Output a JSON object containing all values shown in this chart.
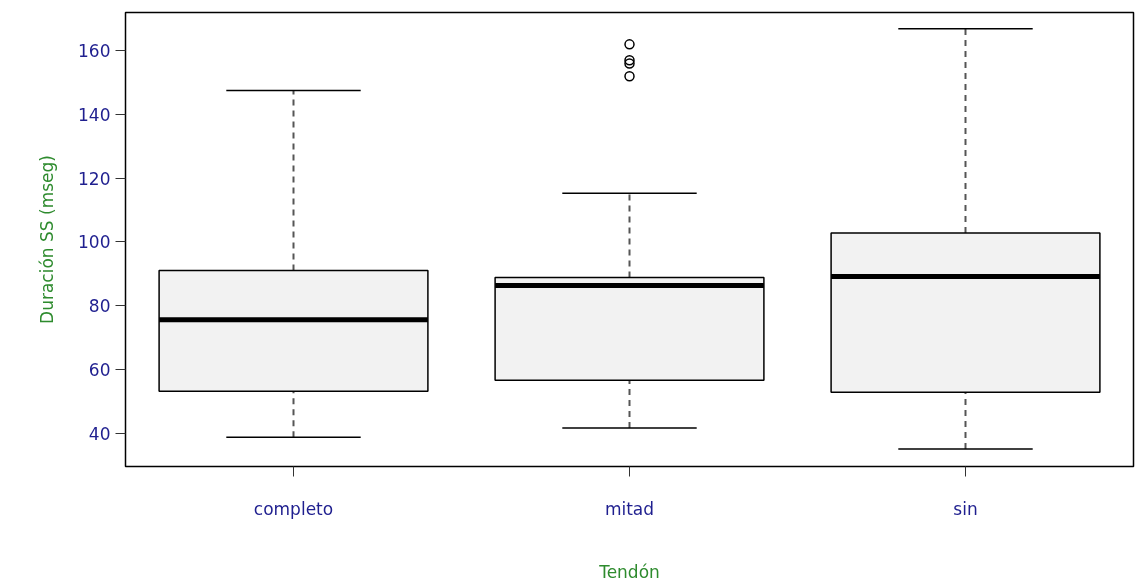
{
  "chart_data": {
    "type": "box",
    "xlabel": "Tendón",
    "ylabel": "Duración SS (mseg)",
    "categories": [
      "completo",
      "mitad",
      "sin"
    ],
    "boxes": [
      {
        "low": 38.7,
        "q1": 53.1,
        "median": 75.6,
        "q3": 91.0,
        "high": 147.5
      },
      {
        "low": 41.6,
        "q1": 56.6,
        "median": 86.3,
        "q3": 88.8,
        "high": 115.3,
        "outliers": [
          162,
          157,
          156,
          152
        ]
      },
      {
        "low": 35,
        "q1": 52.8,
        "median": 89.1,
        "q3": 102.8,
        "high": 166.9
      }
    ],
    "color": "#f2f2f2",
    "ylim": [
      29.5,
      172
    ],
    "yticks": [
      40,
      60,
      80,
      100,
      120,
      140,
      160
    ],
    "grid": false
  }
}
